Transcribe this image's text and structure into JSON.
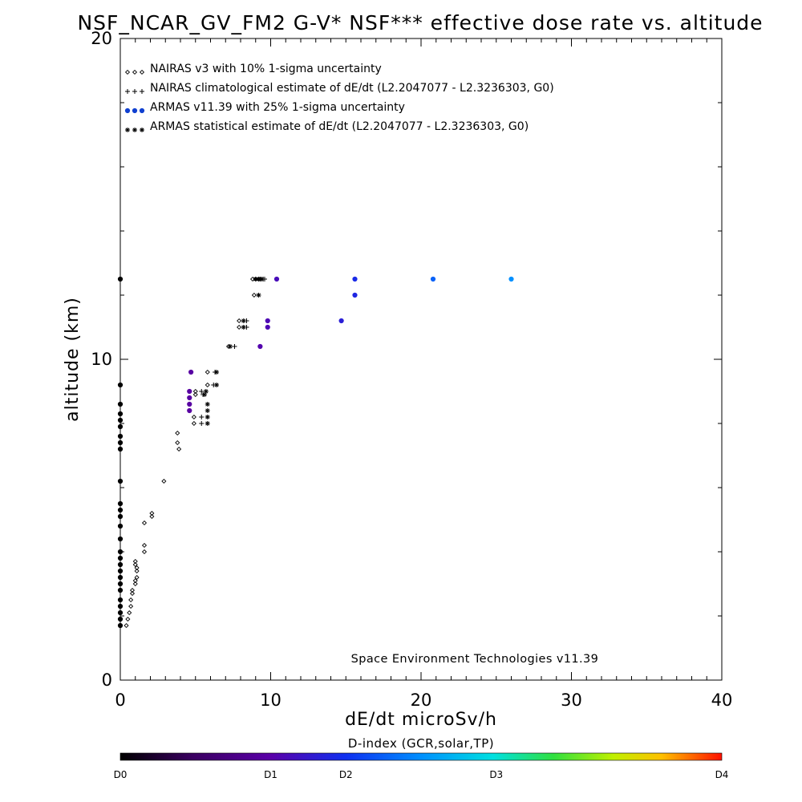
{
  "chart_data": {
    "type": "scatter",
    "title": "NSF_NCAR_GV_FM2 G-V* NSF*** effective dose rate vs. altitude",
    "xlabel": "dE/dt microSv/h",
    "ylabel": "altitude (km)",
    "xlim": [
      0,
      40
    ],
    "ylim": [
      0,
      20
    ],
    "x_ticks": [
      "0",
      "10",
      "20",
      "30",
      "40"
    ],
    "y_ticks": [
      "0",
      "10",
      "20"
    ],
    "legend_placement": "top-left",
    "credit": "Space Environment Technologies v11.39",
    "colorbar": {
      "title": "D-index (GCR,solar,TP)",
      "labels": [
        {
          "text": "D0",
          "value": 0
        },
        {
          "text": "D1",
          "value": 0.25
        },
        {
          "text": "D2",
          "value": 0.375
        },
        {
          "text": "D3",
          "value": 0.625
        },
        {
          "text": "D4",
          "value": 1.0
        }
      ]
    },
    "series": [
      {
        "name": "NAIRAS v3 with 10% 1-sigma uncertainty",
        "marker": "diamond",
        "color": "#000000",
        "points": [
          [
            0.4,
            1.7
          ],
          [
            0.5,
            1.9
          ],
          [
            0.6,
            2.1
          ],
          [
            0.7,
            2.3
          ],
          [
            0.7,
            2.5
          ],
          [
            0.8,
            2.7
          ],
          [
            0.8,
            2.8
          ],
          [
            1.0,
            3.0
          ],
          [
            1.0,
            3.1
          ],
          [
            1.1,
            3.2
          ],
          [
            1.1,
            3.4
          ],
          [
            1.1,
            3.5
          ],
          [
            1.0,
            3.6
          ],
          [
            1.0,
            3.7
          ],
          [
            1.6,
            4.0
          ],
          [
            1.6,
            4.2
          ],
          [
            1.6,
            4.9
          ],
          [
            2.1,
            5.1
          ],
          [
            2.1,
            5.2
          ],
          [
            2.9,
            6.2
          ],
          [
            3.9,
            7.2
          ],
          [
            3.8,
            7.4
          ],
          [
            3.8,
            7.7
          ],
          [
            4.9,
            8.0
          ],
          [
            4.9,
            8.2
          ],
          [
            5.0,
            8.9
          ],
          [
            5.0,
            9.0
          ],
          [
            5.8,
            9.2
          ],
          [
            5.8,
            9.6
          ],
          [
            7.2,
            10.4
          ],
          [
            7.9,
            11.0
          ],
          [
            7.9,
            11.2
          ],
          [
            8.9,
            12.0
          ],
          [
            8.8,
            12.5
          ],
          [
            9.0,
            12.5
          ],
          [
            9.2,
            12.5
          ],
          [
            9.3,
            12.5
          ]
        ]
      },
      {
        "name": "NAIRAS climatological estimate of dE/dt (L2.2047077 - L2.3236303, G0)",
        "marker": "plus",
        "color": "#000000",
        "points": [
          [
            5.4,
            8.0
          ],
          [
            5.4,
            8.2
          ],
          [
            5.5,
            8.9
          ],
          [
            5.4,
            9.0
          ],
          [
            6.2,
            9.2
          ],
          [
            6.3,
            9.6
          ],
          [
            7.6,
            10.4
          ],
          [
            8.4,
            11.0
          ],
          [
            8.4,
            11.2
          ],
          [
            9.3,
            12.5
          ],
          [
            9.5,
            12.5
          ],
          [
            9.6,
            12.5
          ]
        ]
      },
      {
        "name": "ARMAS v11.39 with 25% 1-sigma uncertainty",
        "marker": "circle",
        "color": "#1040d0",
        "points": [
          [
            0.0,
            1.7
          ],
          [
            0.0,
            1.9
          ],
          [
            0.0,
            2.1
          ],
          [
            0.0,
            2.3
          ],
          [
            0.0,
            2.5
          ],
          [
            0.0,
            2.8
          ],
          [
            0.0,
            3.0
          ],
          [
            0.0,
            3.2
          ],
          [
            0.0,
            3.4
          ],
          [
            0.0,
            3.6
          ],
          [
            0.0,
            3.8
          ],
          [
            0.0,
            4.0
          ],
          [
            0.0,
            4.4
          ],
          [
            0.0,
            4.8
          ],
          [
            0.0,
            5.1
          ],
          [
            0.0,
            5.3
          ],
          [
            0.0,
            5.5
          ],
          [
            0.0,
            6.2
          ],
          [
            0.0,
            7.2
          ],
          [
            0.0,
            7.4
          ],
          [
            0.0,
            7.6
          ],
          [
            0.0,
            7.9
          ],
          [
            0.0,
            8.1
          ],
          [
            0.0,
            8.3
          ],
          [
            0.0,
            8.6
          ],
          [
            0.0,
            9.2
          ],
          [
            0.0,
            12.5
          ],
          [
            4.6,
            8.4
          ],
          [
            4.6,
            8.6
          ],
          [
            4.6,
            8.8
          ],
          [
            4.6,
            9.0
          ],
          [
            4.7,
            9.6
          ],
          [
            9.3,
            10.4
          ],
          [
            9.8,
            11.0
          ],
          [
            9.8,
            11.2
          ],
          [
            10.4,
            12.5
          ],
          [
            14.7,
            11.2
          ],
          [
            15.6,
            12.0
          ],
          [
            15.6,
            12.5
          ],
          [
            20.8,
            12.5
          ],
          [
            26.0,
            12.5
          ]
        ],
        "d_index": [
          0.0,
          0.0,
          0.0,
          0.0,
          0.0,
          0.0,
          0.0,
          0.0,
          0.0,
          0.0,
          0.0,
          0.0,
          0.0,
          0.0,
          0.0,
          0.0,
          0.0,
          0.0,
          0.0,
          0.0,
          0.0,
          0.0,
          0.0,
          0.0,
          0.0,
          0.0,
          0.0,
          0.24,
          0.24,
          0.24,
          0.24,
          0.24,
          0.26,
          0.27,
          0.27,
          0.28,
          0.33,
          0.35,
          0.36,
          0.44,
          0.5
        ]
      },
      {
        "name": "ARMAS statistical estimate of dE/dt (L2.2047077 - L2.3236303, G0)",
        "marker": "asterisk",
        "color": "#000000",
        "points": [
          [
            5.8,
            8.0
          ],
          [
            5.8,
            8.2
          ],
          [
            5.8,
            8.4
          ],
          [
            5.8,
            8.6
          ],
          [
            5.6,
            8.9
          ],
          [
            5.7,
            9.0
          ],
          [
            6.4,
            9.2
          ],
          [
            6.4,
            9.6
          ],
          [
            7.3,
            10.4
          ],
          [
            8.2,
            11.0
          ],
          [
            8.2,
            11.2
          ],
          [
            9.2,
            12.0
          ],
          [
            9.0,
            12.5
          ],
          [
            9.2,
            12.5
          ],
          [
            9.4,
            12.5
          ]
        ]
      }
    ]
  }
}
